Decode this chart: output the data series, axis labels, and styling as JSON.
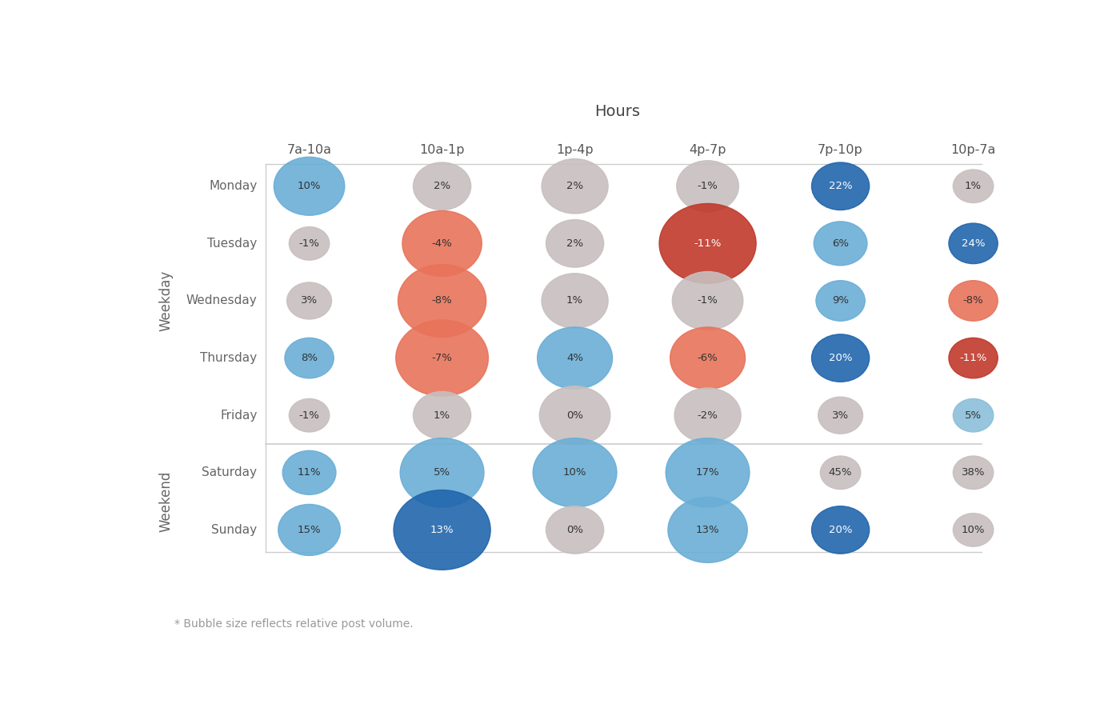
{
  "title": "Hours",
  "hours": [
    "7a-10a",
    "10a-1p",
    "1p-4p",
    "4p-7p",
    "7p-10p",
    "10p-7a"
  ],
  "days": [
    "Monday",
    "Tuesday",
    "Wednesday",
    "Thursday",
    "Friday",
    "Saturday",
    "Sunday"
  ],
  "weekday_label": "Weekday",
  "weekend_label": "Weekend",
  "footnote": "* Bubble size reflects relative post volume.",
  "values": [
    [
      10,
      2,
      2,
      -1,
      22,
      1
    ],
    [
      -1,
      -4,
      2,
      -11,
      6,
      24
    ],
    [
      3,
      -8,
      1,
      -1,
      9,
      -8
    ],
    [
      8,
      -7,
      4,
      -6,
      20,
      -11
    ],
    [
      -1,
      1,
      0,
      -2,
      3,
      5
    ],
    [
      11,
      5,
      10,
      17,
      45,
      38
    ],
    [
      15,
      13,
      0,
      13,
      20,
      10
    ]
  ],
  "bubble_sizes": [
    [
      1200,
      900,
      1100,
      1000,
      900,
      500
    ],
    [
      500,
      1400,
      900,
      1800,
      800,
      700
    ],
    [
      600,
      1600,
      1100,
      1200,
      700,
      700
    ],
    [
      700,
      1700,
      1300,
      1300,
      900,
      700
    ],
    [
      500,
      900,
      1200,
      1100,
      600,
      500
    ],
    [
      800,
      1500,
      1500,
      1500,
      500,
      500
    ],
    [
      1000,
      1800,
      900,
      1400,
      900,
      500
    ]
  ],
  "color_map": [
    [
      "blue_mid",
      "gray",
      "gray",
      "gray",
      "blue_dark",
      "gray"
    ],
    [
      "gray",
      "red_light",
      "gray",
      "red_dark",
      "blue_mid",
      "blue_dark"
    ],
    [
      "gray",
      "red_light",
      "gray",
      "gray",
      "blue_mid",
      "red_light"
    ],
    [
      "blue_mid",
      "red_light",
      "blue_mid",
      "red_light",
      "blue_dark",
      "red_dark"
    ],
    [
      "gray",
      "gray",
      "gray",
      "gray",
      "gray",
      "blue_light"
    ],
    [
      "blue_mid",
      "blue_mid",
      "blue_mid",
      "blue_mid",
      "gray",
      "gray"
    ],
    [
      "blue_mid",
      "blue_dark",
      "gray",
      "blue_mid",
      "blue_dark",
      "gray"
    ]
  ],
  "color_lookup": {
    "blue_light": "#8bbfda",
    "blue_mid": "#6aaed6",
    "blue_dark": "#2166ac",
    "red_light": "#e8735a",
    "red_dark": "#c0392b",
    "gray": "#c8bfbf"
  },
  "dark_text_colors": [
    "blue_dark",
    "red_dark"
  ],
  "grid_line_color": "#cccccc",
  "background_color": "#ffffff",
  "title_color": "#444444",
  "header_color": "#555555",
  "label_color": "#666666",
  "footnote_color": "#999999"
}
